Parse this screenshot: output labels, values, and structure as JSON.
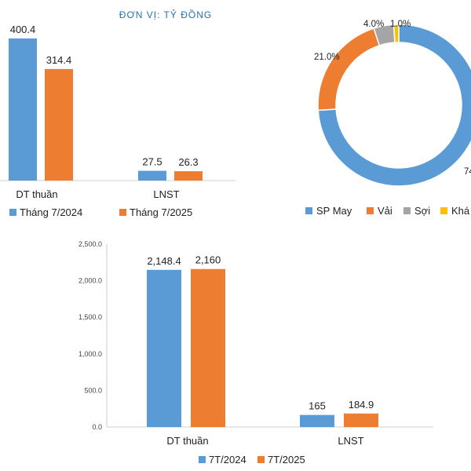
{
  "header": {
    "unit": "ĐƠN VỊ: TỶ ĐỒNG"
  },
  "colors": {
    "blue": "#5b9bd5",
    "orange": "#ed7d31",
    "gray": "#a5a5a5",
    "yellow": "#ffc000"
  },
  "chart_data": [
    {
      "type": "bar",
      "categories": [
        "DT thuần",
        "LNST"
      ],
      "series": [
        {
          "name": "Tháng 7/2024",
          "values": [
            400.4,
            27.5
          ],
          "labels": [
            "400.4",
            "27.5"
          ]
        },
        {
          "name": "Tháng 7/2025",
          "values": [
            314.4,
            26.3
          ],
          "labels": [
            "314.4",
            "26.3"
          ]
        }
      ],
      "ylim": [
        0,
        450
      ],
      "grid": false,
      "legend": "bottom"
    },
    {
      "type": "pie",
      "style": "donut",
      "categories": [
        "SP May",
        "Vải",
        "Sợi",
        "Khá"
      ],
      "values": [
        74.0,
        21.0,
        4.0,
        1.0
      ],
      "labels": [
        "74",
        "21.0%",
        "4.0%",
        "1.0%"
      ],
      "legend": "bottom"
    },
    {
      "type": "bar",
      "categories": [
        "DT thuần",
        "LNST"
      ],
      "series": [
        {
          "name": "7T/2024",
          "values": [
            2148.4,
            165
          ],
          "labels": [
            "2,148.4",
            "165"
          ]
        },
        {
          "name": "7T/2025",
          "values": [
            2160,
            184.9
          ],
          "labels": [
            "2,160",
            "184.9"
          ]
        }
      ],
      "ylim": [
        0,
        2500
      ],
      "yticks": [
        "0.0",
        "500.0",
        "1,000.0",
        "1,500.0",
        "2,000.0",
        "2,500.0"
      ],
      "grid": false,
      "legend": "bottom"
    }
  ]
}
